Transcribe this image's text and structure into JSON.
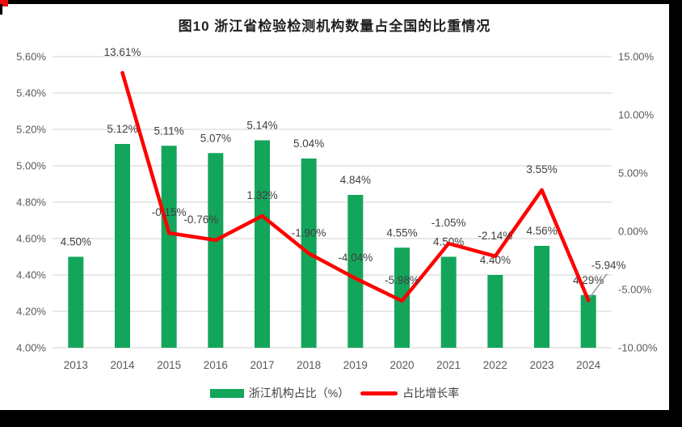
{
  "title": "图10  浙江省检验检测机构数量占全国的比重情况",
  "frame": {
    "background": "#000000",
    "canvas": "#ffffff",
    "corner_mark_color": "#e8100c"
  },
  "colors": {
    "bar": "#13a55a",
    "line": "#fe0000",
    "grid": "#d9d9d9",
    "axis_text": "#595959",
    "label_text": "#404040",
    "leader": "#9b9b9b"
  },
  "legend": [
    {
      "label": "浙江机构占比（%）",
      "type": "bar",
      "color": "#13a55a"
    },
    {
      "label": "占比增长率",
      "type": "line",
      "color": "#fe0000"
    }
  ],
  "chart_data": {
    "type": "bar+line combo",
    "title": "图10  浙江省检验检测机构数量占全国的比重情况",
    "categories": [
      "2013",
      "2014",
      "2015",
      "2016",
      "2017",
      "2018",
      "2019",
      "2020",
      "2021",
      "2022",
      "2023",
      "2024"
    ],
    "series": [
      {
        "name": "浙江机构占比（%）",
        "type": "bar",
        "axis": "left",
        "color": "#13a55a",
        "values": [
          4.5,
          5.12,
          5.11,
          5.07,
          5.14,
          5.04,
          4.84,
          4.55,
          4.5,
          4.4,
          4.56,
          4.29
        ],
        "labels": [
          "4.50%",
          "5.12%",
          "5.11%",
          "5.07%",
          "5.14%",
          "5.04%",
          "4.84%",
          "4.55%",
          "4.50%",
          "4.40%",
          "4.56%",
          "4.29%"
        ]
      },
      {
        "name": "占比增长率",
        "type": "line",
        "axis": "right",
        "color": "#fe0000",
        "values": [
          null,
          13.61,
          -0.15,
          -0.76,
          1.32,
          -1.9,
          -4.04,
          -5.98,
          -1.05,
          -2.14,
          3.55,
          -5.94
        ],
        "labels": [
          null,
          "13.61%",
          "-0.15%",
          "-0.76%",
          "1.32%",
          "-1.90%",
          "-4.04%",
          "-5.98%",
          "-1.05%",
          "-2.14%",
          "3.55%",
          "-5.94%"
        ],
        "label_offsets": {
          "3": [
            -18,
            0
          ],
          "11": [
            25,
            -18
          ]
        },
        "callout_index": 11
      }
    ],
    "left_axis": {
      "min": 4.0,
      "max": 5.6,
      "step": 0.2,
      "ticks": [
        "5.60%",
        "5.40%",
        "5.20%",
        "5.00%",
        "4.80%",
        "4.60%",
        "4.40%",
        "4.20%",
        "4.00%"
      ]
    },
    "right_axis": {
      "min": -10.0,
      "max": 15.0,
      "step": 5.0,
      "ticks": [
        "15.00%",
        "10.00%",
        "5.00%",
        "0.00%",
        "-5.00%",
        "-10.00%"
      ]
    },
    "grid": true,
    "legend_position": "bottom"
  }
}
